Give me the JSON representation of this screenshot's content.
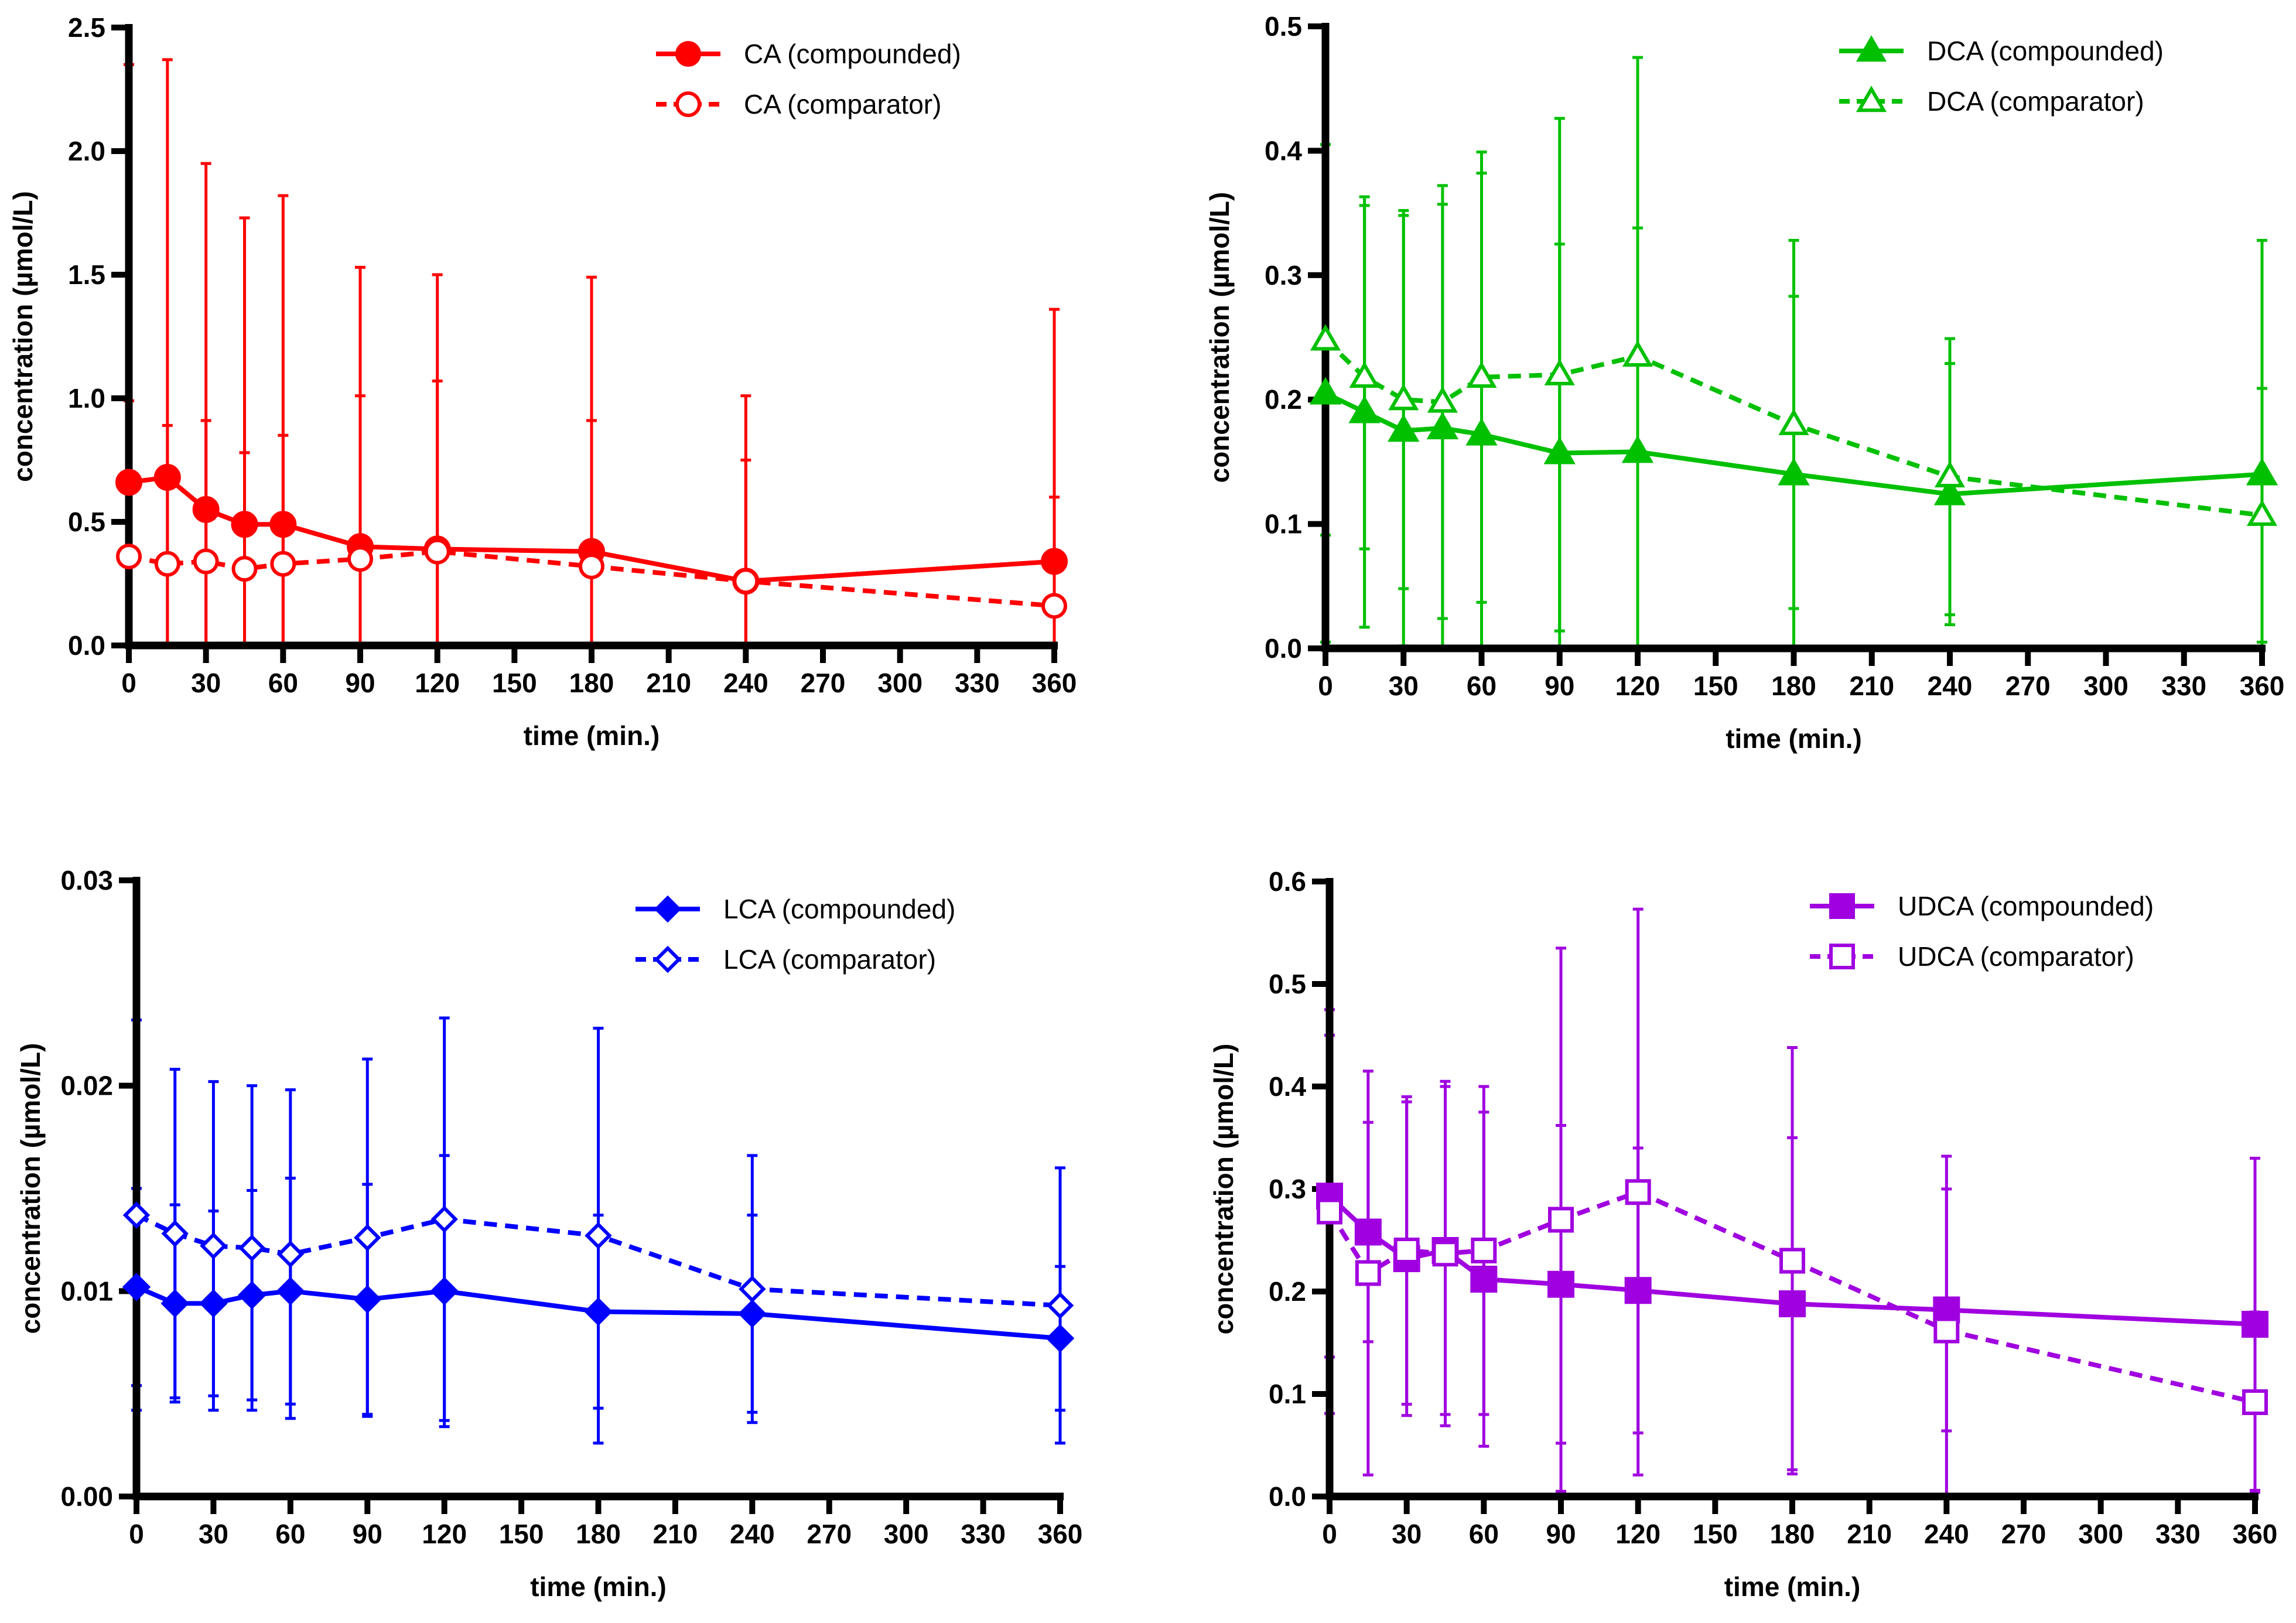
{
  "chart_data": [
    {
      "type": "line",
      "xlabel": "time (min.)",
      "ylabel": "concentration (µmol/L)",
      "xlim": [
        0,
        360
      ],
      "ylim": [
        0,
        2.5
      ],
      "xticks": [
        0,
        30,
        60,
        90,
        120,
        150,
        180,
        210,
        240,
        270,
        300,
        330,
        360
      ],
      "yticks": [
        "0.0",
        "0.5",
        "1.0",
        "1.5",
        "2.0",
        "2.5"
      ],
      "color": "#ff0000",
      "marker": "circle",
      "legend_position": "top-right",
      "x": [
        0,
        15,
        30,
        45,
        60,
        90,
        120,
        180,
        240,
        360
      ],
      "series": [
        {
          "name": "CA (compounded)",
          "style": "solid",
          "filled": true,
          "values": [
            0.66,
            0.68,
            0.55,
            0.49,
            0.49,
            0.4,
            0.39,
            0.38,
            0.26,
            0.34
          ],
          "upper": [
            2.35,
            2.37,
            1.95,
            1.73,
            1.82,
            1.53,
            1.5,
            1.49,
            1.01,
            1.36
          ]
        },
        {
          "name": "CA (comparator)",
          "style": "dashed",
          "filled": false,
          "values": [
            0.36,
            0.33,
            0.34,
            0.31,
            0.33,
            0.35,
            0.38,
            0.32,
            0.26,
            0.16
          ],
          "upper": [
            0.99,
            0.89,
            0.91,
            0.78,
            0.85,
            1.01,
            1.07,
            0.91,
            0.75,
            0.6
          ]
        }
      ]
    },
    {
      "type": "line",
      "xlabel": "time (min.)",
      "ylabel": "concentration (µmol/L)",
      "xlim": [
        0,
        360
      ],
      "ylim": [
        0,
        0.5
      ],
      "xticks": [
        0,
        30,
        60,
        90,
        120,
        150,
        180,
        210,
        240,
        270,
        300,
        330,
        360
      ],
      "yticks": [
        "0.0",
        "0.1",
        "0.2",
        "0.3",
        "0.4",
        "0.5"
      ],
      "color": "#00c000",
      "marker": "triangle",
      "legend_position": "top-right",
      "x": [
        0,
        15,
        30,
        45,
        60,
        90,
        120,
        180,
        240,
        360
      ],
      "series": [
        {
          "name": "DCA (compounded)",
          "style": "solid",
          "filled": true,
          "values": [
            0.205,
            0.19,
            0.175,
            0.177,
            0.172,
            0.157,
            0.158,
            0.14,
            0.124,
            0.14
          ],
          "upper": [
            0.405,
            0.363,
            0.348,
            0.357,
            0.382,
            0.325,
            0.338,
            0.283,
            0.229,
            0.328
          ]
        },
        {
          "name": "DCA (comparator)",
          "style": "dashed",
          "filled": false,
          "values": [
            0.248,
            0.218,
            0.2,
            0.198,
            0.218,
            0.22,
            0.235,
            0.18,
            0.138,
            0.107
          ],
          "upper": [
            0.405,
            0.356,
            0.352,
            0.372,
            0.399,
            0.426,
            0.475,
            0.328,
            0.249,
            0.209
          ]
        }
      ]
    },
    {
      "type": "line",
      "xlabel": "time (min.)",
      "ylabel": "concentration (µmol/L)",
      "xlim": [
        0,
        360
      ],
      "ylim": [
        0,
        0.03
      ],
      "xticks": [
        0,
        30,
        60,
        90,
        120,
        150,
        180,
        210,
        240,
        270,
        300,
        330,
        360
      ],
      "yticks": [
        "0.00",
        "0.01",
        "0.02",
        "0.03"
      ],
      "color": "#0000ff",
      "marker": "diamond",
      "legend_position": "top-right",
      "x": [
        0,
        15,
        30,
        45,
        60,
        90,
        120,
        180,
        240,
        360
      ],
      "series": [
        {
          "name": "LCA (compounded)",
          "style": "solid",
          "filled": true,
          "values": [
            0.0102,
            0.0094,
            0.0094,
            0.0098,
            0.01,
            0.0096,
            0.01,
            0.009,
            0.0089,
            0.0077
          ],
          "upper": [
            0.015,
            0.0142,
            0.0139,
            0.0149,
            0.0155,
            0.0152,
            0.0166,
            0.0137,
            0.0137,
            0.0112
          ]
        },
        {
          "name": "LCA (comparator)",
          "style": "dashed",
          "filled": false,
          "values": [
            0.0137,
            0.0128,
            0.0122,
            0.0121,
            0.0118,
            0.0126,
            0.0135,
            0.0127,
            0.0101,
            0.0093
          ],
          "upper": [
            0.0232,
            0.0208,
            0.0202,
            0.02,
            0.0198,
            0.0213,
            0.0233,
            0.0228,
            0.0166,
            0.016
          ]
        }
      ]
    },
    {
      "type": "line",
      "xlabel": "time (min.)",
      "ylabel": "concentration (µmol/L)",
      "xlim": [
        0,
        360
      ],
      "ylim": [
        0,
        0.6
      ],
      "xticks": [
        0,
        30,
        60,
        90,
        120,
        150,
        180,
        210,
        240,
        270,
        300,
        330,
        360
      ],
      "yticks": [
        "0.0",
        "0.1",
        "0.2",
        "0.3",
        "0.4",
        "0.5",
        "0.6"
      ],
      "color": "#a000e0",
      "marker": "square",
      "legend_position": "top-right",
      "x": [
        0,
        15,
        30,
        45,
        60,
        90,
        120,
        180,
        240,
        360
      ],
      "series": [
        {
          "name": "UDCA (compounded)",
          "style": "solid",
          "filled": true,
          "values": [
            0.293,
            0.258,
            0.232,
            0.24,
            0.212,
            0.207,
            0.201,
            0.188,
            0.182,
            0.168
          ],
          "upper": [
            0.45,
            0.365,
            0.385,
            0.4,
            0.375,
            0.362,
            0.34,
            0.35,
            0.3,
            0.33
          ]
        },
        {
          "name": "UDCA (comparator)",
          "style": "dashed",
          "filled": false,
          "values": [
            0.278,
            0.218,
            0.24,
            0.237,
            0.24,
            0.27,
            0.297,
            0.23,
            0.162,
            0.092
          ],
          "upper": [
            0.475,
            0.415,
            0.39,
            0.405,
            0.4,
            0.535,
            0.573,
            0.438,
            0.332,
            0.18
          ]
        }
      ]
    }
  ]
}
